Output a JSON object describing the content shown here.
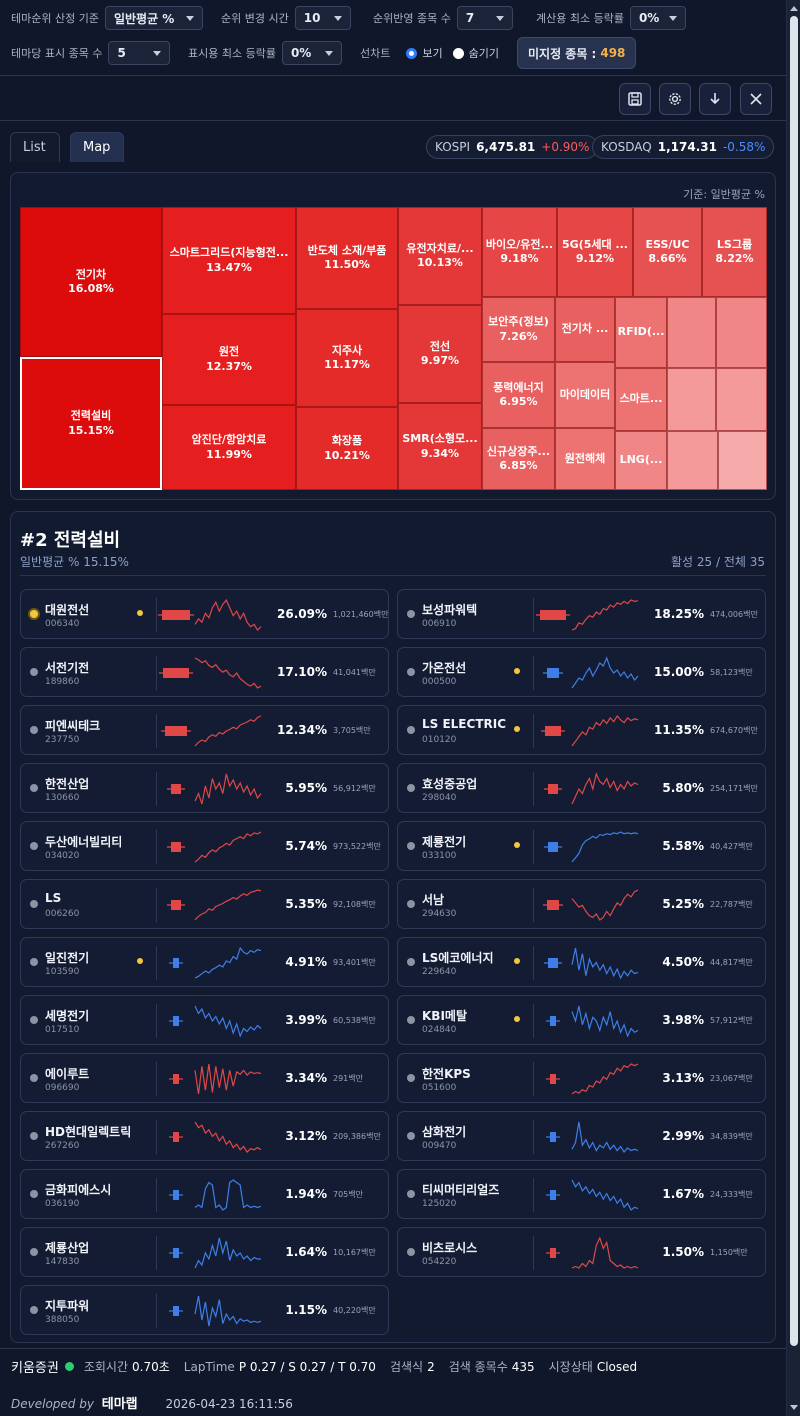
{
  "filters": {
    "theme_basis": {
      "label": "테마순위 산정 기준",
      "value": "일반평균 %"
    },
    "rank_change": {
      "label": "순위 변경 시간",
      "value": "10"
    },
    "rank_count": {
      "label": "순위반영 종목 수",
      "value": "7"
    },
    "min_rate_calc": {
      "label": "계산용 최소 등락률",
      "value": "0%"
    },
    "per_theme": {
      "label": "테마당 표시 종목 수",
      "value": "5"
    },
    "min_rate_disp": {
      "label": "표시용 최소 등락률",
      "value": "0%"
    },
    "line_chart": {
      "label": "선차트",
      "show": "보기",
      "hide": "숨기기",
      "selected": "보기"
    },
    "unassigned": {
      "label": "미지정 종목 :",
      "value": "498"
    }
  },
  "toolbar": {
    "icons": [
      "save-icon",
      "gear-icon",
      "download-icon",
      "close-icon"
    ],
    "save": "🖫",
    "gear": "⚙",
    "down": "↓",
    "close": "✕"
  },
  "tabs": [
    {
      "label": "List"
    },
    {
      "label": "Map"
    }
  ],
  "active_tab": "Map",
  "indices": [
    {
      "name": "KOSPI",
      "value": "6,475.81",
      "change": "+0.90%",
      "dir": "up"
    },
    {
      "name": "KOSDAQ",
      "value": "1,174.31",
      "change": "-0.58%",
      "dir": "down"
    }
  ],
  "treemap": {
    "basis": "기준: 일반평균 %",
    "colors": {
      "c1": "#dc0c0c",
      "c2": "#e51f1f",
      "c3": "#e52a2a",
      "c4": "#e43838",
      "c5": "#e64646",
      "c6": "#e65252",
      "c7": "#e86060",
      "c8": "#ed7272",
      "c9": "#f08686",
      "c10": "#f49a9a",
      "c11": "#f7aaaa"
    },
    "tiles": [
      {
        "name": "전기차",
        "pct": "16.08%",
        "color": "c1"
      },
      {
        "name": "전력설비",
        "pct": "15.15%",
        "color": "c1",
        "selected": true
      },
      {
        "name": "스마트그리드(지능형전...",
        "pct": "13.47%",
        "color": "c2"
      },
      {
        "name": "원전",
        "pct": "12.37%",
        "color": "c2"
      },
      {
        "name": "암진단/항암치료",
        "pct": "11.99%",
        "color": "c2"
      },
      {
        "name": "반도체 소재/부품",
        "pct": "11.50%",
        "color": "c3"
      },
      {
        "name": "지주사",
        "pct": "11.17%",
        "color": "c3"
      },
      {
        "name": "화장품",
        "pct": "10.21%",
        "color": "c3"
      },
      {
        "name": "유전자치료/...",
        "pct": "10.13%",
        "color": "c4"
      },
      {
        "name": "전선",
        "pct": "9.97%",
        "color": "c4"
      },
      {
        "name": "SMR(소형모...",
        "pct": "9.34%",
        "color": "c4"
      },
      {
        "name": "바이오/유전...",
        "pct": "9.18%",
        "color": "c5"
      },
      {
        "name": "5G(5세대 ...",
        "pct": "9.12%",
        "color": "c5"
      },
      {
        "name": "ESS/UC",
        "pct": "8.66%",
        "color": "c6"
      },
      {
        "name": "LS그룹",
        "pct": "8.22%",
        "color": "c6"
      },
      {
        "name": "보안주(정보)",
        "pct": "7.26%",
        "color": "c7"
      },
      {
        "name": "전기차 ...",
        "pct": "",
        "color": "c7"
      },
      {
        "name": "RFID(...",
        "pct": "",
        "color": "c8"
      },
      {
        "name": "",
        "pct": "",
        "color": "c9"
      },
      {
        "name": "",
        "pct": "",
        "color": "c9"
      },
      {
        "name": "풍력에너지",
        "pct": "6.95%",
        "color": "c7"
      },
      {
        "name": "마이데이터",
        "pct": "",
        "color": "c8"
      },
      {
        "name": "스마트...",
        "pct": "",
        "color": "c8"
      },
      {
        "name": "",
        "pct": "",
        "color": "c10"
      },
      {
        "name": "",
        "pct": "",
        "color": "c10"
      },
      {
        "name": "신규상장주...",
        "pct": "6.85%",
        "color": "c7"
      },
      {
        "name": "원전해체",
        "pct": "",
        "color": "c8"
      },
      {
        "name": "LNG(...",
        "pct": "",
        "color": "c9"
      },
      {
        "name": "",
        "pct": "",
        "color": "c10"
      },
      {
        "name": "",
        "pct": "",
        "color": "c11"
      }
    ]
  },
  "detail": {
    "title": "#2 전력설비",
    "subtitle": "일반평균 % 15.15%",
    "stat": "활성 25 / 전체 35",
    "stocks": [
      {
        "name": "대원전선",
        "code": "006340",
        "pct": "26.09%",
        "amount": "1,021,460백만",
        "color": "red",
        "active": true,
        "flag": true,
        "level": 0.9,
        "series": [
          40,
          45,
          42,
          50,
          46,
          55,
          60,
          52,
          58,
          62,
          55,
          48,
          52,
          45,
          50,
          42,
          38,
          40,
          35,
          38
        ]
      },
      {
        "name": "보성파워텍",
        "code": "006910",
        "pct": "18.25%",
        "amount": "474,006백만",
        "color": "red",
        "active": false,
        "flag": false,
        "level": 0.8,
        "series": [
          20,
          22,
          30,
          28,
          35,
          40,
          38,
          45,
          42,
          50,
          48,
          55,
          52,
          58,
          56,
          60,
          57,
          62,
          60,
          61
        ]
      },
      {
        "name": "서전기전",
        "code": "189860",
        "pct": "17.10%",
        "amount": "41,041백만",
        "color": "red",
        "active": false,
        "flag": false,
        "level": 0.8,
        "series": [
          60,
          58,
          55,
          57,
          52,
          50,
          53,
          48,
          45,
          47,
          42,
          40,
          44,
          38,
          35,
          32,
          30,
          33,
          28,
          30
        ]
      },
      {
        "name": "가온전선",
        "code": "000500",
        "pct": "15.00%",
        "amount": "58,123백만",
        "color": "blue",
        "active": false,
        "flag": true,
        "level": 0.4,
        "series": [
          30,
          35,
          40,
          38,
          45,
          50,
          42,
          48,
          55,
          52,
          60,
          50,
          45,
          48,
          42,
          46,
          40,
          44,
          38,
          42
        ]
      },
      {
        "name": "피엔씨테크",
        "code": "237750",
        "pct": "12.34%",
        "amount": "3,705백만",
        "color": "red",
        "active": false,
        "flag": false,
        "level": 0.7,
        "series": [
          20,
          25,
          28,
          26,
          32,
          35,
          33,
          38,
          36,
          40,
          42,
          45,
          43,
          48,
          50,
          52,
          55,
          53,
          58,
          60
        ]
      },
      {
        "name": "LS ELECTRIC",
        "code": "010120",
        "pct": "11.35%",
        "amount": "674,670백만",
        "color": "red",
        "active": false,
        "flag": true,
        "level": 0.5,
        "series": [
          30,
          35,
          40,
          45,
          42,
          50,
          48,
          55,
          52,
          58,
          54,
          60,
          56,
          62,
          58,
          55,
          60,
          57,
          59,
          58
        ]
      },
      {
        "name": "한전산업",
        "code": "130660",
        "pct": "5.95%",
        "amount": "56,912백만",
        "color": "red",
        "active": false,
        "flag": false,
        "level": 0.3,
        "series": [
          40,
          45,
          38,
          50,
          42,
          55,
          48,
          52,
          45,
          58,
          50,
          54,
          48,
          52,
          46,
          50,
          44,
          48,
          42,
          45
        ]
      },
      {
        "name": "효성중공업",
        "code": "298040",
        "pct": "5.80%",
        "amount": "254,171백만",
        "color": "red",
        "active": false,
        "flag": false,
        "level": 0.3,
        "series": [
          35,
          40,
          45,
          42,
          48,
          52,
          45,
          55,
          50,
          48,
          52,
          46,
          50,
          44,
          48,
          45,
          50,
          47,
          49,
          48
        ]
      },
      {
        "name": "두산에너빌리티",
        "code": "034020",
        "pct": "5.74%",
        "amount": "973,522백만",
        "color": "red",
        "active": false,
        "flag": false,
        "level": 0.3,
        "series": [
          25,
          28,
          32,
          30,
          35,
          38,
          36,
          40,
          42,
          45,
          43,
          48,
          50,
          52,
          50,
          55,
          53,
          56,
          55,
          57
        ]
      },
      {
        "name": "제룡전기",
        "code": "033100",
        "pct": "5.58%",
        "amount": "40,427백만",
        "color": "blue",
        "active": false,
        "flag": true,
        "level": 0.3,
        "series": [
          25,
          30,
          35,
          45,
          50,
          52,
          55,
          53,
          57,
          56,
          58,
          57,
          59,
          58,
          60,
          58,
          59,
          58,
          59,
          58
        ]
      },
      {
        "name": "LS",
        "code": "006260",
        "pct": "5.35%",
        "amount": "92,108백만",
        "color": "red",
        "active": false,
        "flag": false,
        "level": 0.3,
        "series": [
          20,
          25,
          28,
          30,
          35,
          33,
          38,
          40,
          42,
          45,
          47,
          50,
          48,
          52,
          55,
          53,
          57,
          58,
          60,
          59
        ]
      },
      {
        "name": "서남",
        "code": "294630",
        "pct": "5.25%",
        "amount": "22,787백만",
        "color": "red",
        "active": false,
        "flag": false,
        "level": 0.4,
        "series": [
          50,
          45,
          40,
          42,
          35,
          30,
          28,
          32,
          25,
          28,
          35,
          30,
          38,
          45,
          42,
          50,
          55,
          52,
          58,
          60
        ]
      },
      {
        "name": "일진전기",
        "code": "103590",
        "pct": "4.91%",
        "amount": "93,401백만",
        "color": "blue",
        "active": false,
        "flag": true,
        "level": 0.2,
        "series": [
          20,
          22,
          25,
          28,
          26,
          30,
          32,
          35,
          33,
          40,
          38,
          45,
          42,
          55,
          50,
          48,
          52,
          50,
          53,
          52
        ]
      },
      {
        "name": "LS에코에너지",
        "code": "229640",
        "pct": "4.50%",
        "amount": "44,817백만",
        "color": "blue",
        "active": false,
        "flag": true,
        "level": 0.3,
        "series": [
          40,
          55,
          35,
          50,
          30,
          45,
          38,
          42,
          35,
          40,
          32,
          38,
          30,
          36,
          28,
          34,
          30,
          35,
          32,
          33
        ]
      },
      {
        "name": "세명전기",
        "code": "017510",
        "pct": "3.99%",
        "amount": "60,538백만",
        "color": "blue",
        "active": false,
        "flag": false,
        "level": 0.2,
        "series": [
          50,
          45,
          48,
          42,
          45,
          40,
          43,
          38,
          42,
          35,
          40,
          32,
          38,
          30,
          35,
          33,
          36,
          34,
          37,
          35
        ]
      },
      {
        "name": "KBI메탈",
        "code": "024840",
        "pct": "3.98%",
        "amount": "57,912백만",
        "color": "blue",
        "active": false,
        "flag": true,
        "level": 0.2,
        "series": [
          45,
          40,
          48,
          38,
          44,
          36,
          42,
          40,
          35,
          42,
          38,
          45,
          36,
          40,
          34,
          38,
          32,
          36,
          34,
          35
        ]
      },
      {
        "name": "에이루트",
        "code": "096690",
        "pct": "3.34%",
        "amount": "291백만",
        "color": "red",
        "active": false,
        "flag": false,
        "level": 0.2,
        "series": [
          50,
          20,
          55,
          25,
          58,
          22,
          55,
          28,
          52,
          25,
          50,
          30,
          48,
          45,
          50,
          44,
          48,
          46,
          47,
          46
        ]
      },
      {
        "name": "한전KPS",
        "code": "051600",
        "pct": "3.13%",
        "amount": "23,067백만",
        "color": "red",
        "active": false,
        "flag": false,
        "level": 0.2,
        "series": [
          25,
          28,
          26,
          30,
          28,
          35,
          33,
          40,
          38,
          45,
          42,
          50,
          48,
          55,
          52,
          58,
          56,
          60,
          58,
          60
        ]
      },
      {
        "name": "HD현대일렉트릭",
        "code": "267260",
        "pct": "3.12%",
        "amount": "209,386백만",
        "color": "red",
        "active": false,
        "flag": false,
        "level": 0.2,
        "series": [
          55,
          50,
          52,
          45,
          48,
          42,
          45,
          38,
          42,
          35,
          38,
          32,
          35,
          30,
          33,
          28,
          31,
          30,
          32,
          30
        ]
      },
      {
        "name": "삼화전기",
        "code": "009470",
        "pct": "2.99%",
        "amount": "34,839백만",
        "color": "blue",
        "active": false,
        "flag": false,
        "level": 0.2,
        "series": [
          35,
          40,
          55,
          38,
          42,
          36,
          40,
          34,
          38,
          36,
          40,
          35,
          38,
          34,
          37,
          33,
          36,
          34,
          35,
          34
        ]
      },
      {
        "name": "금화피에스시",
        "code": "036190",
        "pct": "1.94%",
        "amount": "705백만",
        "color": "blue",
        "active": false,
        "flag": false,
        "level": 0.1,
        "series": [
          30,
          32,
          30,
          45,
          50,
          48,
          30,
          32,
          28,
          30,
          50,
          52,
          50,
          48,
          30,
          32,
          30,
          31,
          30,
          31
        ]
      },
      {
        "name": "티씨머티리얼즈",
        "code": "125020",
        "pct": "1.67%",
        "amount": "24,333백만",
        "color": "blue",
        "active": false,
        "flag": false,
        "level": 0.1,
        "series": [
          50,
          45,
          48,
          42,
          45,
          40,
          43,
          38,
          41,
          36,
          40,
          35,
          38,
          33,
          36,
          30,
          33,
          28,
          30,
          29
        ]
      },
      {
        "name": "제룡산업",
        "code": "147830",
        "pct": "1.64%",
        "amount": "10,167백만",
        "color": "blue",
        "active": false,
        "flag": false,
        "level": 0.1,
        "series": [
          30,
          35,
          32,
          40,
          36,
          45,
          38,
          50,
          40,
          48,
          35,
          42,
          38,
          40,
          36,
          38,
          35,
          37,
          36,
          36
        ]
      },
      {
        "name": "비츠로시스",
        "code": "054220",
        "pct": "1.50%",
        "amount": "1,150백만",
        "color": "red",
        "active": false,
        "flag": false,
        "level": 0.1,
        "series": [
          35,
          36,
          35,
          38,
          36,
          40,
          38,
          50,
          55,
          48,
          52,
          40,
          38,
          36,
          37,
          35,
          36,
          35,
          36,
          35
        ]
      },
      {
        "name": "지투파워",
        "code": "388050",
        "pct": "1.15%",
        "amount": "40,220백만",
        "color": "blue",
        "active": false,
        "flag": false,
        "level": 0.1,
        "series": [
          40,
          55,
          35,
          50,
          30,
          45,
          38,
          52,
          32,
          40,
          35,
          38,
          32,
          36,
          34,
          35,
          33,
          34,
          33,
          34
        ]
      }
    ]
  },
  "footer": {
    "broker": "키움증권",
    "items": [
      {
        "k": "조회시간",
        "v": "0.70초"
      },
      {
        "k": "LapTime",
        "v": "P 0.27 / S 0.27 / T 0.70"
      },
      {
        "k": "검색식",
        "v": "2"
      },
      {
        "k": "검색 종목수",
        "v": "435"
      },
      {
        "k": "시장상태",
        "v": "Closed"
      }
    ],
    "developed_by": "Developed by",
    "brand": "테마랩",
    "timestamp": "2026-04-23 16:11:56"
  }
}
